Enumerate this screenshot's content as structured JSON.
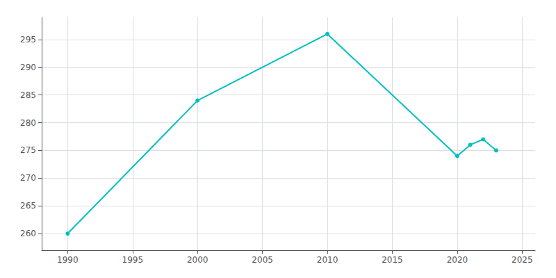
{
  "chart_data": {
    "type": "line",
    "x": [
      1990,
      2000,
      2010,
      2020,
      2021,
      2022,
      2023
    ],
    "values": [
      260,
      284,
      296,
      274,
      276,
      277,
      275
    ],
    "color": "#00BFBF",
    "marker": "circle",
    "xlim": [
      1988,
      2026
    ],
    "xticks": [
      1990,
      1995,
      2000,
      2005,
      2010,
      2015,
      2020,
      2025
    ],
    "ylim": [
      257,
      299
    ],
    "yticks": [
      260,
      265,
      270,
      275,
      280,
      285,
      290,
      295
    ],
    "grid": true
  }
}
